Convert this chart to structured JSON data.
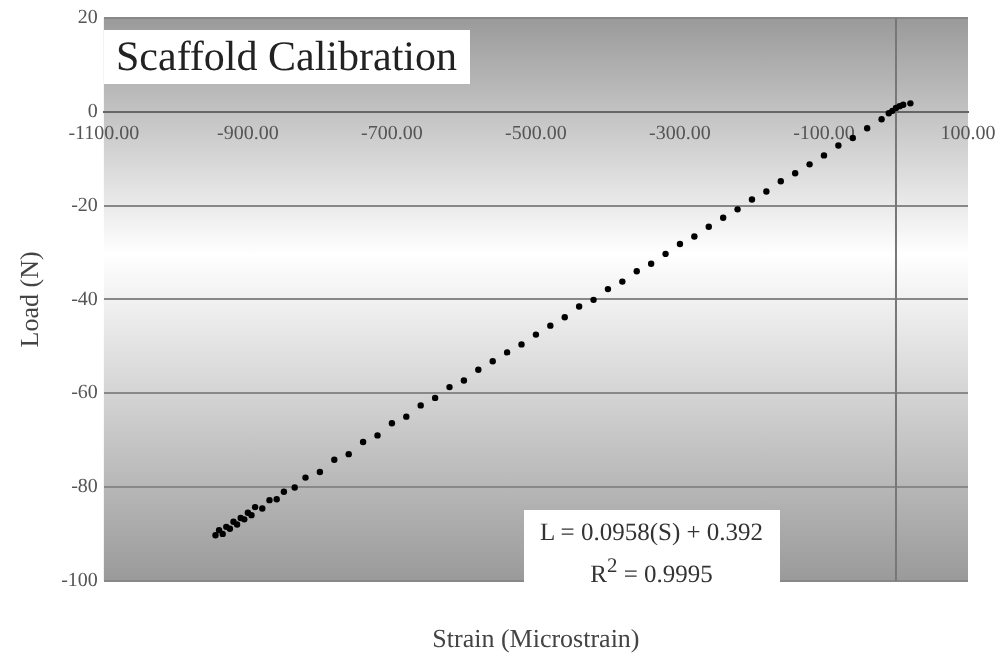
{
  "chart_data": {
    "type": "scatter",
    "title": "Scaffold Calibration",
    "xlabel": "Strain (Microstrain)",
    "ylabel": "Load (N)",
    "annotations": [
      "L = 0.0958(S) + 0.392",
      "R$^{2}$ = 0.9995"
    ],
    "x": [
      -945,
      -940,
      -935,
      -930,
      -925,
      -920,
      -915,
      -910,
      -905,
      -900,
      -895,
      -890,
      -880,
      -870,
      -860,
      -850,
      -835,
      -820,
      -800,
      -780,
      -760,
      -740,
      -720,
      -700,
      -680,
      -660,
      -640,
      -620,
      -600,
      -580,
      -560,
      -540,
      -520,
      -500,
      -480,
      -460,
      -440,
      -420,
      -400,
      -380,
      -360,
      -340,
      -320,
      -300,
      -280,
      -260,
      -240,
      -220,
      -200,
      -180,
      -160,
      -140,
      -120,
      -100,
      -80,
      -60,
      -40,
      -20,
      -10,
      -5,
      0,
      5,
      10,
      20
    ],
    "series": [
      {
        "color": "#000000",
        "values": [
          -90.3,
          -89.2,
          -90.0,
          -88.5,
          -88.9,
          -87.4,
          -88.0,
          -86.6,
          -86.9,
          -85.5,
          -86.0,
          -84.3,
          -84.6,
          -82.8,
          -82.6,
          -81.0,
          -80.1,
          -78.0,
          -76.8,
          -74.2,
          -73.0,
          -70.4,
          -69.0,
          -66.4,
          -65.0,
          -62.6,
          -61.0,
          -58.7,
          -57.3,
          -55.0,
          -53.2,
          -51.3,
          -49.6,
          -47.5,
          -45.6,
          -43.8,
          -41.5,
          -40.1,
          -37.8,
          -36.2,
          -34.0,
          -32.4,
          -30.3,
          -28.2,
          -26.6,
          -24.5,
          -22.6,
          -20.8,
          -18.7,
          -17.0,
          -14.8,
          -13.1,
          -11.2,
          -9.3,
          -7.2,
          -5.6,
          -3.5,
          -1.6,
          -0.3,
          0.2,
          0.8,
          1.2,
          1.5,
          1.8
        ]
      }
    ],
    "xlim": [
      -1100,
      100
    ],
    "xticks": [
      {
        "value": -1100,
        "label": "-1100.00"
      },
      {
        "value": -900,
        "label": "-900.00"
      },
      {
        "value": -700,
        "label": "-700.00"
      },
      {
        "value": -500,
        "label": "-500.00"
      },
      {
        "value": -300,
        "label": "-300.00"
      },
      {
        "value": -100,
        "label": "-100.00"
      },
      {
        "value": 100,
        "label": "100.00"
      }
    ],
    "ylim": [
      -100,
      20
    ],
    "yticks": [
      -100,
      -80,
      -60,
      -40,
      -20,
      0,
      20
    ],
    "ref_lines": [
      {
        "axis": "x",
        "value": 0,
        "color": "#777777"
      }
    ],
    "grid": "y",
    "legend": false,
    "marker": "circle"
  }
}
